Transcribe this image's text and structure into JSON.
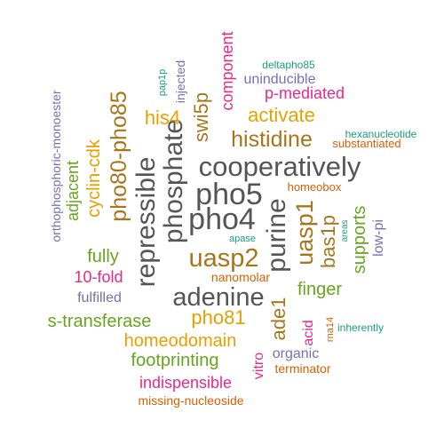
{
  "words": {
    "cooperatively": "cooperatively",
    "pho5": "pho5",
    "pho4": "pho4",
    "adenine": "adenine",
    "phosphate": "phosphate",
    "repressible": "repressible",
    "purine": "purine",
    "uasp2": "uasp2",
    "uasp1": "uasp1",
    "histidine": "histidine",
    "pho80_pho85": "pho80-pho85",
    "swi5p": "swi5p",
    "activate": "activate",
    "his4": "his4",
    "component": "component",
    "bas1p": "bas1p",
    "ade1": "ade1",
    "pho81": "pho81",
    "homeodomain": "homeodomain",
    "footprinting": "footprinting",
    "s_transferase": "s-transferase",
    "finger": "finger",
    "supports": "supports",
    "cyclin_cdk": "cyclin-cdk",
    "indispensible": "indispensible",
    "fully": "fully",
    "ten_fold": "10-fold",
    "adjacent": "adjacent",
    "p_mediated": "p-mediated",
    "uninducible": "uninducible",
    "acid": "acid",
    "organic": "organic",
    "vitro": "vitro",
    "low_pi": "low-pi",
    "injected": "injected",
    "nanomolar": "nanomolar",
    "terminator": "terminator",
    "fulfilled": "fulfilled",
    "missing_nucleoside": "missing-nucleoside",
    "orthophosphoric_monoester": "orthophosphoric-monoester",
    "substantiated": "substantiated",
    "hexanucleotide": "hexanucleotide",
    "homeobox": "homeobox",
    "deltapho85": "deltapho85",
    "pap1p": "pap1p",
    "apase": "apase",
    "areas": "areas",
    "rna14": "rna14",
    "inherently": "inherently"
  }
}
